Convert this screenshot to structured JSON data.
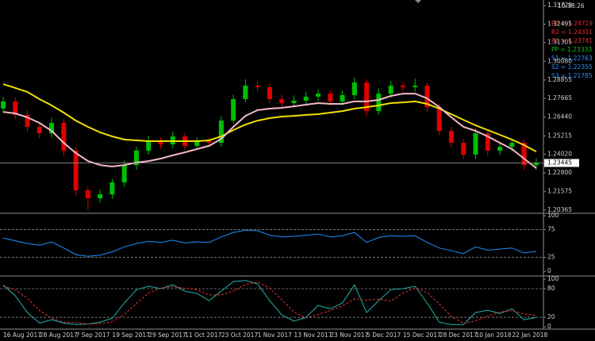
{
  "time": "10:38:26",
  "annotations": [
    {
      "text": "R3 = 1.24719",
      "color": "#e03030"
    },
    {
      "text": "R2 = 1.24311",
      "color": "#e03030"
    },
    {
      "text": "R1 = 1.23741",
      "color": "#e03030"
    },
    {
      "text": "PP = 1.23333",
      "color": "#00d000"
    },
    {
      "text": "S1 = 1.22763",
      "color": "#2e8fff"
    },
    {
      "text": "S2 = 1.22355",
      "color": "#2e8fff"
    },
    {
      "text": "S3 = 1.21785",
      "color": "#2e8fff"
    }
  ],
  "chart_data": [
    {
      "type": "candlestick",
      "categories": [
        "16 Aug 2017",
        null,
        null,
        "28 Aug 2017",
        null,
        null,
        "7 Sep 2017",
        null,
        null,
        "19 Sep 2017",
        null,
        null,
        "29 Sep 2017",
        null,
        null,
        "11 Oct 2017",
        null,
        null,
        "23 Oct 2017",
        null,
        null,
        "1 Nov 2017",
        null,
        null,
        "13 Nov 2017",
        null,
        null,
        "23 Nov 2017",
        null,
        null,
        "5 Dec 2017",
        null,
        null,
        "15 Dec 2017",
        null,
        null,
        "28 Dec 2017",
        null,
        null,
        "10 Jan 2018",
        null,
        null,
        "22 Jan 2018",
        null,
        null
      ],
      "open": [
        1.27,
        1.2746,
        1.2658,
        1.258,
        1.2538,
        1.2606,
        1.2425,
        1.2166,
        1.2114,
        1.214,
        1.2218,
        1.2331,
        1.2425,
        1.2487,
        1.2466,
        1.2518,
        1.2456,
        1.2487,
        1.2476,
        1.2621,
        1.2761,
        1.2849,
        1.2839,
        1.2761,
        1.2735,
        1.2751,
        1.2777,
        1.2797,
        1.2746,
        1.2787,
        1.287,
        1.2683,
        1.2797,
        1.2849,
        1.2839,
        1.2849,
        1.2709,
        1.2554,
        1.2476,
        1.2399,
        1.2538,
        1.2425,
        1.245,
        1.2476,
        1.233
      ],
      "high": [
        1.2776,
        1.277,
        1.269,
        1.2612,
        1.264,
        1.263,
        1.245,
        1.219,
        1.217,
        1.224,
        1.236,
        1.245,
        1.252,
        1.251,
        1.255,
        1.254,
        1.2515,
        1.251,
        1.265,
        1.279,
        1.289,
        1.288,
        1.286,
        1.279,
        1.2785,
        1.281,
        1.2825,
        1.282,
        1.2815,
        1.29,
        1.289,
        1.283,
        1.288,
        1.2875,
        1.2895,
        1.287,
        1.273,
        1.258,
        1.25,
        1.257,
        1.2555,
        1.248,
        1.2505,
        1.2495,
        1.2375
      ],
      "low": [
        1.267,
        1.263,
        1.255,
        1.2505,
        1.251,
        1.2395,
        1.213,
        1.204,
        1.2085,
        1.211,
        1.219,
        1.23,
        1.24,
        1.244,
        1.244,
        1.243,
        1.243,
        1.245,
        1.245,
        1.26,
        1.274,
        1.281,
        1.2735,
        1.2705,
        1.271,
        1.2725,
        1.275,
        1.272,
        1.272,
        1.276,
        1.265,
        1.266,
        1.277,
        1.281,
        1.281,
        1.268,
        1.2525,
        1.2445,
        1.237,
        1.237,
        1.2395,
        1.2395,
        1.242,
        1.23,
        1.23
      ],
      "close": [
        1.2746,
        1.2658,
        1.258,
        1.2538,
        1.2606,
        1.2425,
        1.2166,
        1.2114,
        1.214,
        1.2218,
        1.2331,
        1.2425,
        1.2487,
        1.2466,
        1.2518,
        1.2456,
        1.2487,
        1.2476,
        1.2621,
        1.2761,
        1.2849,
        1.2839,
        1.2761,
        1.2735,
        1.2751,
        1.2777,
        1.2797,
        1.2746,
        1.2787,
        1.287,
        1.2683,
        1.2797,
        1.2849,
        1.2839,
        1.2849,
        1.2709,
        1.2554,
        1.2476,
        1.2399,
        1.2538,
        1.2425,
        1.245,
        1.2476,
        1.233,
        1.2345
      ],
      "up_color": "#00c000",
      "down_color": "#e00000",
      "series": [
        {
          "color": "#f0e000",
          "values": [
            1.2859,
            1.2834,
            1.2808,
            1.2761,
            1.272,
            1.2673,
            1.2621,
            1.258,
            1.2544,
            1.2518,
            1.2497,
            1.2492,
            1.2487,
            1.2487,
            1.2487,
            1.2487,
            1.2487,
            1.2492,
            1.2518,
            1.2559,
            1.2595,
            1.2621,
            1.2637,
            1.2647,
            1.2652,
            1.2658,
            1.2663,
            1.2673,
            1.2683,
            1.2699,
            1.2709,
            1.272,
            1.2735,
            1.274,
            1.2746,
            1.273,
            1.2699,
            1.2663,
            1.2626,
            1.259,
            1.2559,
            1.2528,
            1.2497,
            1.2461,
            1.2419
          ]
        },
        {
          "color": "#f2b8c6",
          "values": [
            1.2678,
            1.2668,
            1.2642,
            1.2606,
            1.2554,
            1.2476,
            1.2409,
            1.2357,
            1.2331,
            1.2321,
            1.2331,
            1.2347,
            1.2357,
            1.2373,
            1.2394,
            1.2414,
            1.2435,
            1.2456,
            1.2502,
            1.258,
            1.2652,
            1.2689,
            1.2699,
            1.2704,
            1.2714,
            1.2725,
            1.2735,
            1.273,
            1.273,
            1.2746,
            1.2746,
            1.2756,
            1.2782,
            1.2797,
            1.2797,
            1.2766,
            1.2709,
            1.2642,
            1.258,
            1.2554,
            1.2518,
            1.2476,
            1.2435,
            1.2373,
            1.2311
          ]
        }
      ],
      "current_price": 1.23445,
      "ylim": [
        1.2021,
        1.3408
      ],
      "yticks": [
        {
          "value": 1.3372,
          "label": "1.33720"
        },
        1.32495,
        1.31305,
        {
          "value": 1.3008,
          "label": "1.30080"
        },
        1.28855,
        1.27665,
        {
          "value": 1.2644,
          "label": "1.26440"
        },
        1.25215,
        {
          "value": 1.2402,
          "label": "1.24020"
        },
        {
          "value": 1.228,
          "label": "1.22800"
        },
        1.21575,
        1.20365
      ]
    },
    {
      "type": "line",
      "series": [
        {
          "color": "#1e90ff",
          "values": [
            60,
            55,
            50,
            47,
            53,
            42,
            30,
            27,
            29,
            35,
            44,
            50,
            54,
            52,
            56,
            51,
            53,
            52,
            62,
            70,
            74,
            73,
            65,
            62,
            63,
            65,
            67,
            62,
            64,
            70,
            52,
            61,
            64,
            63,
            64,
            52,
            42,
            37,
            32,
            44,
            38,
            40,
            42,
            33,
            36
          ]
        }
      ],
      "levels": [
        75,
        25
      ],
      "ylim": [
        -7,
        103
      ],
      "yticks": [
        100,
        75,
        25,
        0
      ]
    },
    {
      "type": "line",
      "series": [
        {
          "color": "#20b2aa",
          "style": "solid",
          "values": [
            88,
            65,
            30,
            8,
            15,
            8,
            5,
            6,
            10,
            18,
            50,
            78,
            85,
            80,
            88,
            75,
            70,
            55,
            75,
            95,
            97,
            90,
            55,
            25,
            12,
            20,
            45,
            38,
            50,
            88,
            30,
            55,
            78,
            80,
            85,
            50,
            10,
            5,
            5,
            30,
            35,
            28,
            38,
            15,
            20
          ]
        },
        {
          "color": "#e03030",
          "style": "dashed",
          "values": [
            85,
            78,
            60,
            34,
            18,
            10,
            9,
            6,
            7,
            11,
            26,
            49,
            71,
            81,
            84,
            81,
            78,
            67,
            67,
            75,
            89,
            94,
            81,
            57,
            31,
            19,
            26,
            34,
            44,
            59,
            56,
            58,
            54,
            71,
            81,
            72,
            48,
            22,
            7,
            13,
            23,
            31,
            34,
            27,
            24
          ]
        }
      ],
      "levels": [
        80,
        20
      ],
      "ylim": [
        -3,
        105
      ],
      "yticks": [
        100,
        80,
        20,
        0
      ]
    }
  ]
}
